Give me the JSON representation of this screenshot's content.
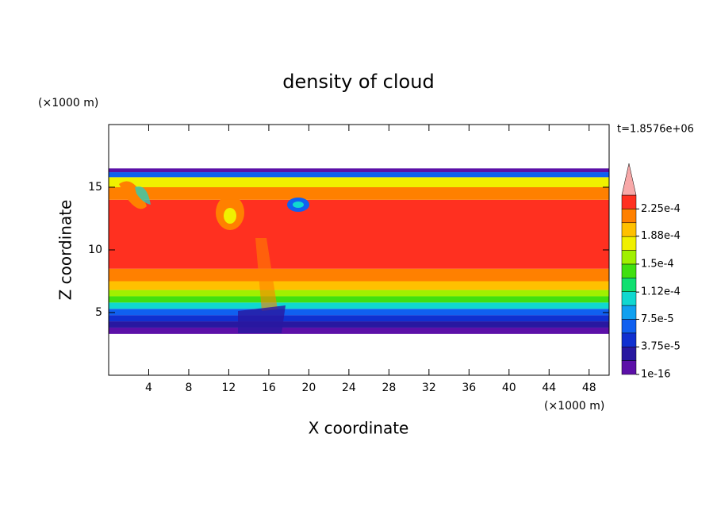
{
  "chart_data": {
    "type": "contour",
    "title": "density of cloud",
    "time_label": "t=1.8576e+06",
    "xlabel": "X coordinate",
    "ylabel": "Z coordinate",
    "xunit": "(×1000 m)",
    "yunit": "(×1000 m)",
    "xlim": [
      0,
      50
    ],
    "ylim": [
      0,
      20
    ],
    "xticks": [
      4,
      8,
      12,
      16,
      20,
      24,
      28,
      32,
      36,
      40,
      44,
      48
    ],
    "yticks": [
      5,
      10,
      15
    ],
    "domain_x": [
      0,
      50
    ],
    "z_edges": [
      3.3,
      3.8,
      4.3,
      4.8,
      5.3,
      5.8,
      6.3,
      6.8,
      7.5,
      8.5,
      14,
      15,
      15.8,
      16.2,
      16.5
    ],
    "values": [
      5e-06,
      2.5e-05,
      4.5e-05,
      7e-05,
      0.0001,
      0.000135,
      0.00016,
      0.000195,
      0.00022,
      0.000235,
      0.00022,
      0.00018,
      6e-05,
      5e-06
    ],
    "colorbar": {
      "levels": [
        1e-16,
        1.875e-05,
        3.75e-05,
        5.625e-05,
        7.5e-05,
        9.375e-05,
        0.0001125,
        0.00013125,
        0.00015,
        0.00016875,
        0.0001875,
        0.00020625,
        0.000225,
        0.00024375
      ],
      "colors": [
        "#5c10a8",
        "#2818a0",
        "#1030d0",
        "#1060f0",
        "#10a0f0",
        "#10d8d0",
        "#10e070",
        "#40e010",
        "#a0f000",
        "#f0f000",
        "#ffc000",
        "#ff8000",
        "#ff3020"
      ],
      "extend_color": "#f8a8a8",
      "ticks": [
        {
          "value": 1e-16,
          "label": "1e-16"
        },
        {
          "value": 3.75e-05,
          "label": "3.75e-5"
        },
        {
          "value": 7.5e-05,
          "label": "7.5e-5"
        },
        {
          "value": 0.000112,
          "label": "1.12e-4"
        },
        {
          "value": 0.00015,
          "label": "1.5e-4"
        },
        {
          "value": 0.000188,
          "label": "1.88e-4"
        },
        {
          "value": 0.000225,
          "label": "2.25e-4"
        }
      ]
    }
  }
}
